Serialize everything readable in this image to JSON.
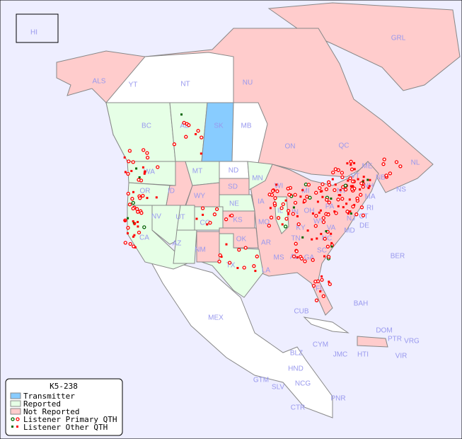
{
  "map": {
    "colors": {
      "ocean": "#eeeeff",
      "transmitter": "#88ccff",
      "reported": "#e6ffe6",
      "not_reported": "#ffcccc",
      "unlisted": "#ffffff",
      "label": "#9999ee",
      "primary_qth": "#ff0000",
      "primary_qth_reported": "#006600"
    },
    "regions": {
      "transmitter": [
        "SK"
      ],
      "reported": [
        "BC",
        "AB",
        "WA",
        "OR",
        "CA",
        "NV",
        "UT",
        "CO",
        "AZ",
        "MT",
        "NE",
        "TX",
        "MN",
        "IL"
      ],
      "not_reported": [
        "ALS",
        "YT",
        "NU",
        "GRL",
        "ON",
        "QC",
        "NL",
        "NB",
        "NS",
        "ID",
        "WY",
        "SD",
        "NM",
        "KS",
        "OK",
        "IA",
        "MO",
        "AR",
        "LA",
        "MS",
        "AL",
        "GA",
        "FL",
        "TN",
        "KY",
        "IN",
        "OH",
        "MI",
        "WI",
        "PA",
        "NY",
        "VT",
        "NH",
        "ME",
        "MA",
        "CT",
        "RI",
        "NJ",
        "DE",
        "MD",
        "WV",
        "VA",
        "NC",
        "SC",
        "DOM",
        "PTR",
        "CUB",
        "BAH"
      ],
      "unlisted": [
        "NT",
        "MB",
        "ND",
        "MEX",
        "HI"
      ]
    },
    "labels": [
      "HI",
      "ALS",
      "YT",
      "NT",
      "NU",
      "GRL",
      "BC",
      "AB",
      "SK",
      "MB",
      "ON",
      "QC",
      "NL",
      "NB",
      "NS",
      "WA",
      "MT",
      "ND",
      "MN",
      "WI",
      "MI",
      "OR",
      "ID",
      "WY",
      "SD",
      "IA",
      "IL",
      "IN",
      "OH",
      "PA",
      "NY",
      "VT",
      "NH",
      "ME",
      "MA",
      "CT",
      "RI",
      "NJ",
      "DE",
      "MD",
      "NV",
      "UT",
      "CO",
      "NE",
      "KS",
      "MO",
      "KY",
      "WV",
      "VA",
      "CA",
      "AZ",
      "NM",
      "OK",
      "AR",
      "TN",
      "NC",
      "SC",
      "MS",
      "AL",
      "GA",
      "TX",
      "LA",
      "FL",
      "MEX",
      "CUB",
      "BAH",
      "BER",
      "DOM",
      "PTR",
      "VRG",
      "CYM",
      "JMC",
      "HTI",
      "VIR",
      "BLZ",
      "HND",
      "GTM",
      "SLV",
      "NCG",
      "CTR",
      "PNR"
    ]
  },
  "legend": {
    "title": "K5-238",
    "items": [
      {
        "label": "Transmitter",
        "type": "swatch",
        "color": "#88ccff"
      },
      {
        "label": "Reported",
        "type": "swatch",
        "color": "#e6ffe6"
      },
      {
        "label": "Not Reported",
        "type": "swatch",
        "color": "#ffcccc"
      },
      {
        "label": "Listener Primary QTH",
        "type": "circle"
      },
      {
        "label": "Listener Other QTH",
        "type": "square"
      }
    ]
  }
}
